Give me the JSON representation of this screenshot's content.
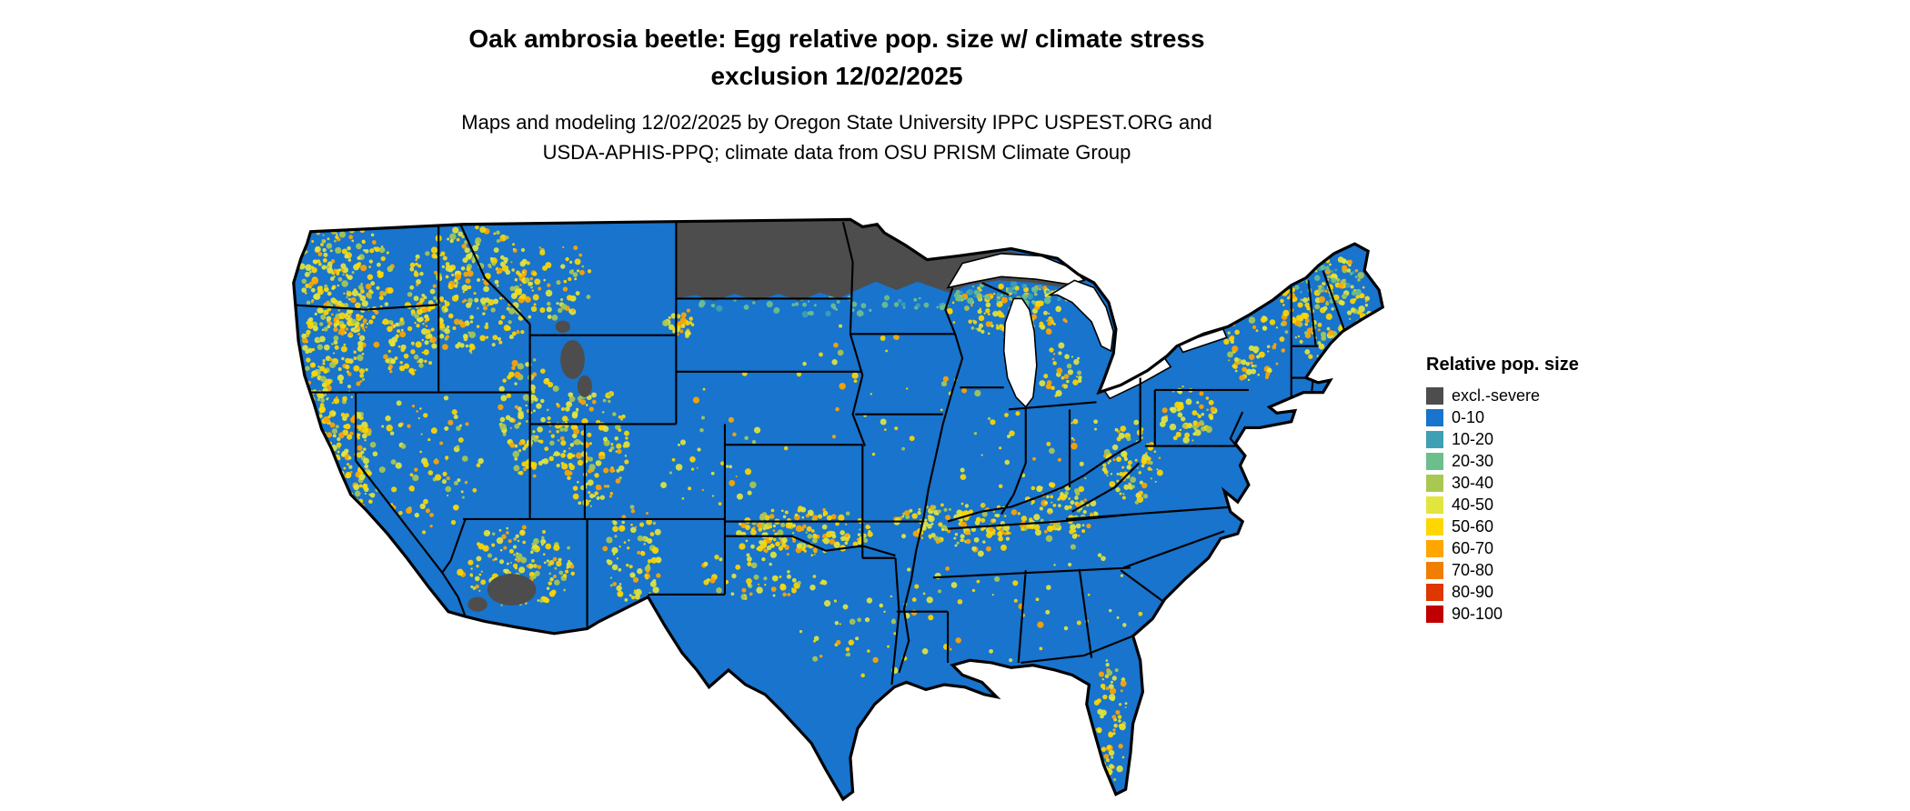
{
  "title": {
    "line1": "Oak ambrosia beetle: Egg relative pop. size w/ climate stress",
    "line2": "exclusion 12/02/2025"
  },
  "subtitle": {
    "line1": "Maps and modeling 12/02/2025 by Oregon State University IPPC USPEST.ORG and",
    "line2": "USDA-APHIS-PPQ; climate data from OSU PRISM Climate Group"
  },
  "legend": {
    "title": "Relative pop. size",
    "items": [
      {
        "label": "excl.-severe",
        "color": "#4D4D4D"
      },
      {
        "label": "0-10",
        "color": "#1874CD"
      },
      {
        "label": "10-20",
        "color": "#3FA0B4"
      },
      {
        "label": "20-30",
        "color": "#6CBF8C"
      },
      {
        "label": "30-40",
        "color": "#A9C852"
      },
      {
        "label": "40-50",
        "color": "#E2E53E"
      },
      {
        "label": "50-60",
        "color": "#FFD700"
      },
      {
        "label": "60-70",
        "color": "#FFA500"
      },
      {
        "label": "70-80",
        "color": "#F07F00"
      },
      {
        "label": "80-90",
        "color": "#DE3700"
      },
      {
        "label": "90-100",
        "color": "#C00000"
      }
    ]
  },
  "map": {
    "base_fill_category": "0-10",
    "excluded_category": "excl.-severe"
  }
}
